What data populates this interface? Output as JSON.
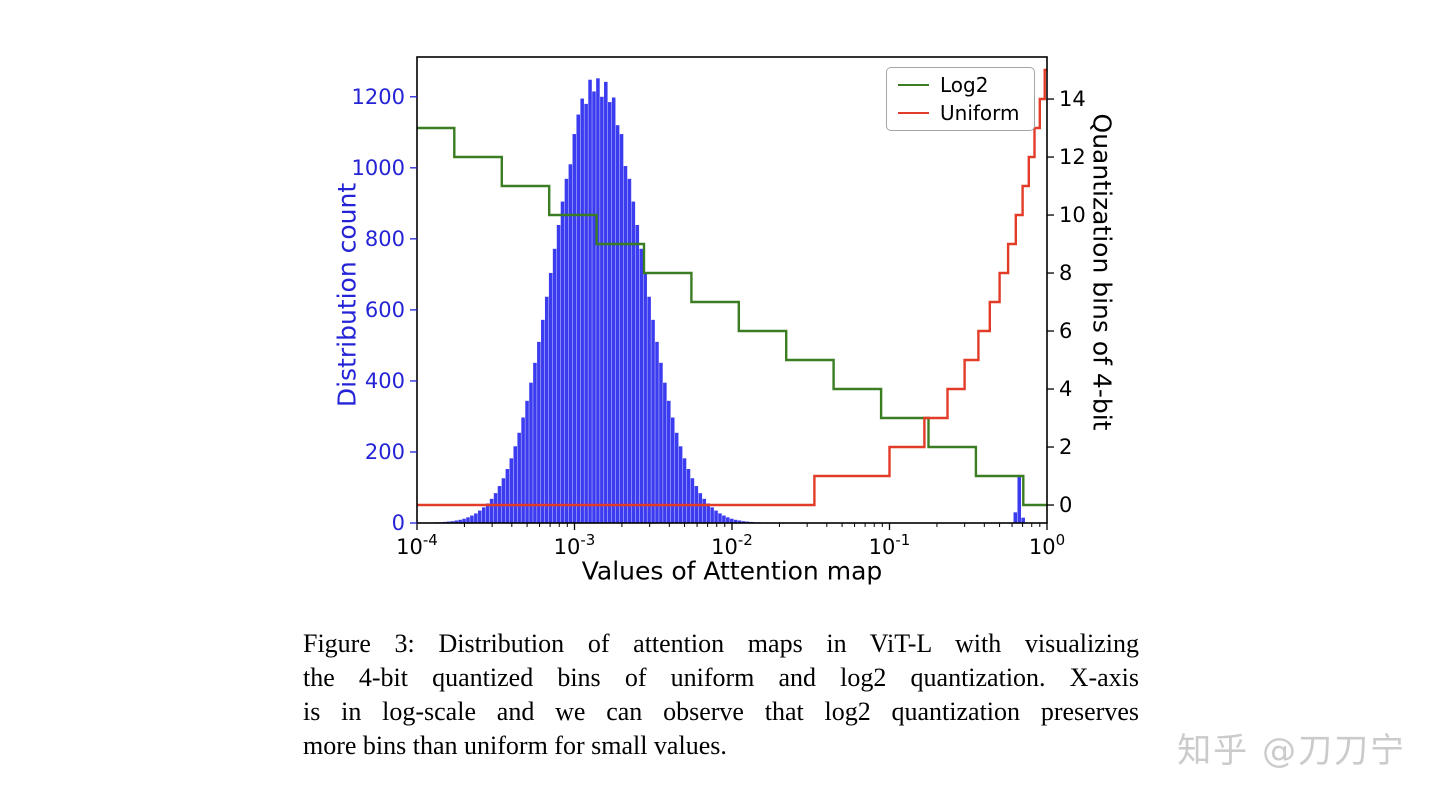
{
  "figure": {
    "caption_lines": [
      "Figure 3: Distribution of attention maps in ViT-L with visualizing",
      "the 4-bit quantized bins of uniform and log2 quantization. X-axis",
      "is in log-scale and we can observe that log2 quantization preserves",
      "more bins than uniform for small values."
    ],
    "watermark": "知乎 @刀刀宁"
  },
  "chart_data": {
    "type": "line",
    "title": "",
    "xlabel": "Values of Attention map",
    "ylabel_left": "Distribution count",
    "ylabel_right": "Quantization bins of 4-bit",
    "x_scale": "log",
    "xlim_log10": [
      -4,
      0
    ],
    "ylim_left": [
      0,
      1312
    ],
    "ylim_right": [
      -0.62,
      15.45
    ],
    "x_tick_exponents": [
      -4,
      -3,
      -2,
      -1,
      0
    ],
    "y_ticks_left": [
      0,
      200,
      400,
      600,
      800,
      1000,
      1200
    ],
    "y_ticks_right": [
      0,
      2,
      4,
      6,
      8,
      10,
      12,
      14
    ],
    "grid": false,
    "legend_position": "upper right",
    "colors": {
      "histogram": "#3b3bf0",
      "left_axis": "#2424d6",
      "log2": "#3a7d23",
      "uniform": "#e23b28"
    },
    "legend": [
      {
        "label": "Log2",
        "series": "log2"
      },
      {
        "label": "Uniform",
        "series": "uniform"
      }
    ],
    "histogram": {
      "description": "Distribution of attention map values (left axis), bars centered at log10(x) with counts",
      "bar_log10_width": 0.025,
      "bars": [
        [
          -3.875,
          2
        ],
        [
          -3.85,
          2
        ],
        [
          -3.825,
          3
        ],
        [
          -3.8,
          4
        ],
        [
          -3.775,
          5
        ],
        [
          -3.75,
          7
        ],
        [
          -3.725,
          9
        ],
        [
          -3.7,
          12
        ],
        [
          -3.675,
          16
        ],
        [
          -3.65,
          21
        ],
        [
          -3.625,
          27
        ],
        [
          -3.6,
          35
        ],
        [
          -3.575,
          44
        ],
        [
          -3.55,
          55
        ],
        [
          -3.525,
          68
        ],
        [
          -3.5,
          84
        ],
        [
          -3.475,
          104
        ],
        [
          -3.45,
          126
        ],
        [
          -3.425,
          152
        ],
        [
          -3.4,
          182
        ],
        [
          -3.375,
          216
        ],
        [
          -3.35,
          254
        ],
        [
          -3.325,
          297
        ],
        [
          -3.3,
          344
        ],
        [
          -3.275,
          395
        ],
        [
          -3.25,
          451
        ],
        [
          -3.225,
          510
        ],
        [
          -3.2,
          572
        ],
        [
          -3.175,
          637
        ],
        [
          -3.15,
          704
        ],
        [
          -3.125,
          772
        ],
        [
          -3.1,
          839
        ],
        [
          -3.075,
          905
        ],
        [
          -3.05,
          969
        ],
        [
          -3.025,
          1010
        ],
        [
          -3.0,
          1095
        ],
        [
          -2.975,
          1150
        ],
        [
          -2.95,
          1195
        ],
        [
          -2.925,
          1180
        ],
        [
          -2.9,
          1248
        ],
        [
          -2.875,
          1215
        ],
        [
          -2.85,
          1252
        ],
        [
          -2.825,
          1200
        ],
        [
          -2.8,
          1242
        ],
        [
          -2.775,
          1185
        ],
        [
          -2.75,
          1198
        ],
        [
          -2.725,
          1120
        ],
        [
          -2.7,
          1095
        ],
        [
          -2.675,
          1005
        ],
        [
          -2.65,
          969
        ],
        [
          -2.625,
          905
        ],
        [
          -2.6,
          839
        ],
        [
          -2.575,
          772
        ],
        [
          -2.55,
          704
        ],
        [
          -2.525,
          637
        ],
        [
          -2.5,
          572
        ],
        [
          -2.475,
          510
        ],
        [
          -2.45,
          451
        ],
        [
          -2.425,
          395
        ],
        [
          -2.4,
          344
        ],
        [
          -2.375,
          297
        ],
        [
          -2.35,
          254
        ],
        [
          -2.325,
          216
        ],
        [
          -2.3,
          182
        ],
        [
          -2.275,
          152
        ],
        [
          -2.25,
          126
        ],
        [
          -2.225,
          104
        ],
        [
          -2.2,
          84
        ],
        [
          -2.175,
          68
        ],
        [
          -2.15,
          55
        ],
        [
          -2.125,
          44
        ],
        [
          -2.1,
          35
        ],
        [
          -2.075,
          27
        ],
        [
          -2.05,
          21
        ],
        [
          -2.025,
          16
        ],
        [
          -2.0,
          12
        ],
        [
          -1.975,
          9
        ],
        [
          -1.95,
          7
        ],
        [
          -1.925,
          5
        ],
        [
          -1.9,
          4
        ],
        [
          -1.875,
          3
        ],
        [
          -1.85,
          2
        ],
        [
          -1.825,
          2
        ],
        [
          -1.8,
          1
        ],
        [
          -0.2,
          30
        ],
        [
          -0.175,
          135
        ],
        [
          -0.15,
          15
        ]
      ]
    },
    "series": [
      {
        "name": "Log2",
        "key": "log2",
        "axis": "right",
        "type": "step",
        "segments": [
          [
            0.0001,
            0.00017263,
            13
          ],
          [
            0.00017263,
            0.00034527,
            12
          ],
          [
            0.00034527,
            0.00069053,
            11
          ],
          [
            0.00069053,
            0.00138107,
            10
          ],
          [
            0.00138107,
            0.00276214,
            9
          ],
          [
            0.00276214,
            0.00552427,
            8
          ],
          [
            0.00552427,
            0.01104854,
            7
          ],
          [
            0.01104854,
            0.02209709,
            6
          ],
          [
            0.02209709,
            0.04419417,
            5
          ],
          [
            0.04419417,
            0.08838835,
            4
          ],
          [
            0.08838835,
            0.1767767,
            3
          ],
          [
            0.1767767,
            0.35355339,
            2
          ],
          [
            0.35355339,
            0.70710678,
            1
          ],
          [
            0.70710678,
            1.0,
            0
          ]
        ]
      },
      {
        "name": "Uniform",
        "key": "uniform",
        "axis": "right",
        "type": "step",
        "segments": [
          [
            0.0001,
            0.0333333,
            0
          ],
          [
            0.0333333,
            0.1,
            1
          ],
          [
            0.1,
            0.1666667,
            2
          ],
          [
            0.1666667,
            0.2333333,
            3
          ],
          [
            0.2333333,
            0.3,
            4
          ],
          [
            0.3,
            0.3666667,
            5
          ],
          [
            0.3666667,
            0.4333333,
            6
          ],
          [
            0.4333333,
            0.5,
            7
          ],
          [
            0.5,
            0.5666667,
            8
          ],
          [
            0.5666667,
            0.6333333,
            9
          ],
          [
            0.6333333,
            0.7,
            10
          ],
          [
            0.7,
            0.7666667,
            11
          ],
          [
            0.7666667,
            0.8333333,
            12
          ],
          [
            0.8333333,
            0.9,
            13
          ],
          [
            0.9,
            0.9666667,
            14
          ],
          [
            0.9666667,
            1.0,
            15
          ]
        ]
      }
    ]
  }
}
